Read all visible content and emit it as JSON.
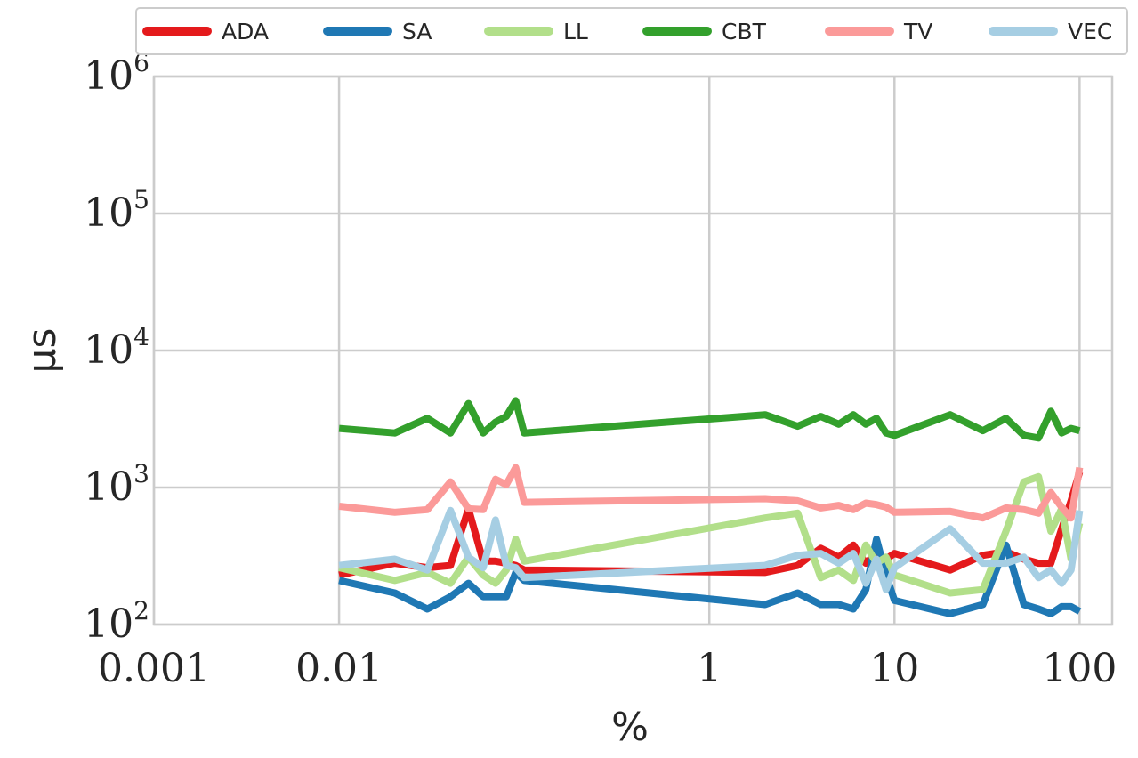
{
  "chart_data": {
    "type": "line",
    "xlabel": "%",
    "ylabel": "μs",
    "xscale": "log",
    "yscale": "log",
    "xlim": [
      0.001,
      150
    ],
    "ylim": [
      100,
      1000000
    ],
    "grid": true,
    "legend_position": "top",
    "x_ticks": [
      {
        "value": 0.001,
        "label": "0.001"
      },
      {
        "value": 0.01,
        "label": "0.01"
      },
      {
        "value": 1,
        "label": "1"
      },
      {
        "value": 10,
        "label": "10"
      },
      {
        "value": 100,
        "label": "100"
      }
    ],
    "y_ticks": [
      {
        "value": 100,
        "base": "10",
        "exp": "2"
      },
      {
        "value": 1000,
        "base": "10",
        "exp": "3"
      },
      {
        "value": 10000,
        "base": "10",
        "exp": "4"
      },
      {
        "value": 100000,
        "base": "10",
        "exp": "5"
      },
      {
        "value": 1000000,
        "base": "10",
        "exp": "6"
      }
    ],
    "series": [
      {
        "name": "ADA",
        "color": "#e41a1c",
        "x": [
          0.01,
          0.02,
          0.03,
          0.04,
          0.05,
          0.06,
          0.07,
          0.08,
          0.09,
          0.1,
          2,
          3,
          4,
          5,
          6,
          7,
          8,
          9,
          10,
          20,
          30,
          40,
          50,
          60,
          70,
          80,
          90,
          100
        ],
        "y": [
          230,
          280,
          260,
          270,
          700,
          290,
          290,
          280,
          270,
          250,
          240,
          270,
          360,
          310,
          380,
          280,
          330,
          300,
          330,
          250,
          320,
          340,
          300,
          280,
          280,
          500,
          800,
          1300
        ]
      },
      {
        "name": "SA",
        "color": "#1f78b4",
        "x": [
          0.01,
          0.02,
          0.03,
          0.04,
          0.05,
          0.06,
          0.07,
          0.08,
          0.09,
          0.1,
          2,
          3,
          4,
          5,
          6,
          7,
          8,
          9,
          10,
          20,
          30,
          40,
          50,
          60,
          70,
          80,
          90,
          100
        ],
        "y": [
          210,
          170,
          130,
          160,
          200,
          160,
          160,
          160,
          240,
          210,
          140,
          170,
          140,
          140,
          130,
          180,
          420,
          230,
          150,
          120,
          140,
          380,
          140,
          130,
          120,
          135,
          135,
          125
        ]
      },
      {
        "name": "LL",
        "color": "#b2df8a",
        "x": [
          0.01,
          0.02,
          0.03,
          0.04,
          0.05,
          0.06,
          0.07,
          0.08,
          0.09,
          0.1,
          2,
          3,
          4,
          5,
          6,
          7,
          8,
          9,
          10,
          20,
          30,
          40,
          50,
          60,
          70,
          80,
          90,
          100
        ],
        "y": [
          260,
          210,
          240,
          200,
          310,
          230,
          200,
          250,
          420,
          290,
          600,
          650,
          220,
          250,
          210,
          380,
          280,
          310,
          230,
          170,
          180,
          480,
          1100,
          1200,
          480,
          700,
          300,
          550
        ]
      },
      {
        "name": "CBT",
        "color": "#33a02c",
        "x": [
          0.01,
          0.02,
          0.03,
          0.04,
          0.05,
          0.06,
          0.07,
          0.08,
          0.09,
          0.1,
          2,
          3,
          4,
          5,
          6,
          7,
          8,
          9,
          10,
          20,
          30,
          40,
          50,
          60,
          70,
          80,
          90,
          100
        ],
        "y": [
          2700,
          2500,
          3200,
          2500,
          4100,
          2500,
          3000,
          3300,
          4300,
          2500,
          3400,
          2800,
          3300,
          2900,
          3400,
          2900,
          3200,
          2500,
          2400,
          3400,
          2600,
          3200,
          2400,
          2300,
          3600,
          2500,
          2700,
          2600
        ]
      },
      {
        "name": "TV",
        "color": "#fb9a99",
        "x": [
          0.01,
          0.02,
          0.03,
          0.04,
          0.05,
          0.06,
          0.07,
          0.08,
          0.09,
          0.1,
          2,
          3,
          4,
          5,
          6,
          7,
          8,
          9,
          10,
          20,
          30,
          40,
          50,
          60,
          70,
          80,
          90,
          100
        ],
        "y": [
          730,
          660,
          690,
          1100,
          700,
          690,
          1150,
          1050,
          1400,
          780,
          830,
          800,
          710,
          740,
          690,
          770,
          750,
          720,
          660,
          670,
          600,
          710,
          690,
          650,
          920,
          720,
          600,
          1400
        ]
      },
      {
        "name": "VEC",
        "color": "#a6cee3",
        "x": [
          0.01,
          0.02,
          0.03,
          0.04,
          0.05,
          0.06,
          0.07,
          0.08,
          0.09,
          0.1,
          2,
          3,
          4,
          5,
          6,
          7,
          8,
          9,
          10,
          20,
          30,
          40,
          50,
          60,
          70,
          80,
          90,
          100
        ],
        "y": [
          270,
          300,
          250,
          680,
          310,
          260,
          580,
          270,
          260,
          220,
          270,
          320,
          330,
          280,
          330,
          200,
          300,
          180,
          260,
          500,
          280,
          280,
          310,
          220,
          250,
          200,
          250,
          680
        ]
      }
    ]
  }
}
